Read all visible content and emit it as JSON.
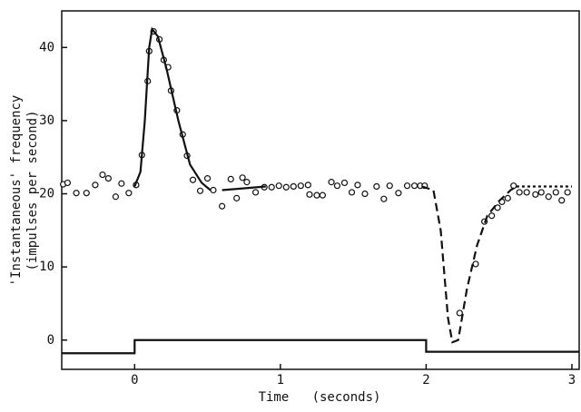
{
  "chart_data": {
    "type": "line",
    "x_label": "Time   (seconds)",
    "y_label": [
      "'Instantaneous' frequency",
      "(impulses per second)"
    ],
    "xlim": [
      -0.5,
      3.05
    ],
    "xticks": [
      0,
      1,
      2,
      3
    ],
    "ylim": [
      -4,
      45
    ],
    "yticks": [
      0,
      10,
      20,
      30,
      40
    ],
    "grid": false,
    "series": [
      {
        "style": "markers",
        "color": "#111111",
        "x": [
          -0.49,
          -0.46,
          -0.4,
          -0.33,
          -0.27,
          -0.22,
          -0.18,
          -0.13,
          -0.09,
          -0.04,
          0.01,
          0.05,
          0.09,
          0.1,
          0.13,
          0.17,
          0.2,
          0.23,
          0.25,
          0.29,
          0.33,
          0.36,
          0.4,
          0.45,
          0.5,
          0.54,
          0.6,
          0.66,
          0.7,
          0.74,
          0.77,
          0.83,
          0.89,
          0.94,
          0.99,
          1.04,
          1.09,
          1.14,
          1.19,
          1.2,
          1.25,
          1.29,
          1.35,
          1.39,
          1.44,
          1.49,
          1.53,
          1.58,
          1.66,
          1.71,
          1.75,
          1.81,
          1.87,
          1.92,
          1.96,
          1.99,
          2.23,
          2.34,
          2.4,
          2.45,
          2.49,
          2.52,
          2.56,
          2.6,
          2.64,
          2.69,
          2.75,
          2.79,
          2.84,
          2.89,
          2.93,
          2.97
        ],
        "values": [
          21.3,
          21.5,
          20.1,
          20.1,
          21.2,
          22.6,
          22.1,
          19.6,
          21.4,
          20.1,
          21.2,
          25.3,
          35.4,
          39.5,
          42.2,
          41.1,
          38.3,
          37.3,
          34.1,
          31.4,
          28.1,
          25.2,
          21.9,
          20.4,
          22.1,
          20.5,
          18.3,
          22.0,
          19.4,
          22.2,
          21.6,
          20.2,
          20.9,
          20.9,
          21.1,
          20.9,
          21.0,
          21.1,
          21.2,
          19.9,
          19.8,
          19.8,
          21.6,
          21.1,
          21.5,
          20.2,
          21.2,
          20.0,
          21.0,
          19.3,
          21.1,
          20.1,
          21.1,
          21.1,
          21.1,
          21.1,
          3.7,
          10.4,
          16.2,
          17.0,
          18.1,
          18.9,
          19.4,
          21.1,
          20.2,
          20.2,
          19.9,
          20.2,
          19.6,
          20.2,
          19.1,
          20.2
        ]
      },
      {
        "style": "solid",
        "color": "#111111",
        "x": [
          0.0,
          0.04,
          0.07,
          0.1,
          0.12,
          0.16,
          0.22,
          0.3,
          0.38,
          0.46,
          0.52,
          0.56,
          0.6,
          0.9
        ],
        "values": [
          21.0,
          23,
          30,
          40,
          42.5,
          41.5,
          37,
          30,
          24,
          21.5,
          20.5,
          null,
          20.5,
          21.0
        ]
      },
      {
        "style": "dashed",
        "color": "#111111",
        "x": [
          1.97,
          2.05,
          2.1,
          2.15,
          2.18,
          2.22,
          2.28,
          2.35,
          2.42,
          2.5,
          2.58,
          2.62
        ],
        "values": [
          21,
          20.5,
          15,
          3,
          -0.3,
          0,
          7,
          13,
          17,
          19,
          20.5,
          21
        ]
      },
      {
        "style": "dotted",
        "color": "#111111",
        "x": [
          2.62,
          2.75,
          3.0
        ],
        "values": [
          21,
          21,
          21
        ]
      },
      {
        "style": "solid",
        "color": "#111111",
        "x": [
          -0.5,
          0,
          0,
          2,
          2,
          3.05
        ],
        "values": [
          -1.8,
          -1.8,
          0,
          0,
          -1.6,
          -1.6
        ]
      }
    ]
  }
}
